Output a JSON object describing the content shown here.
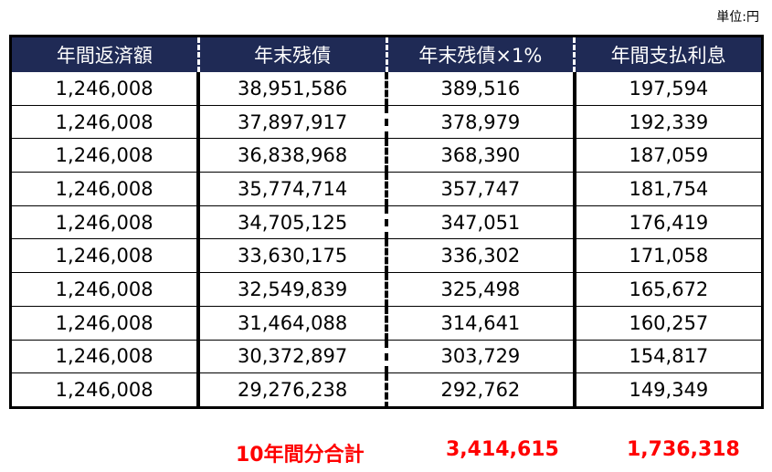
{
  "unit_label": "単位:円",
  "table": {
    "headers": [
      "年間返済額",
      "年末残債",
      "年末残債×1%",
      "年間支払利息"
    ],
    "rows": [
      [
        "1,246,008",
        "38,951,586",
        "389,516",
        "197,594"
      ],
      [
        "1,246,008",
        "37,897,917",
        "378,979",
        "192,339"
      ],
      [
        "1,246,008",
        "36,838,968",
        "368,390",
        "187,059"
      ],
      [
        "1,246,008",
        "35,774,714",
        "357,747",
        "181,754"
      ],
      [
        "1,246,008",
        "34,705,125",
        "347,051",
        "176,419"
      ],
      [
        "1,246,008",
        "33,630,175",
        "336,302",
        "171,058"
      ],
      [
        "1,246,008",
        "32,549,839",
        "325,498",
        "165,672"
      ],
      [
        "1,246,008",
        "31,464,088",
        "314,641",
        "160,257"
      ],
      [
        "1,246,008",
        "30,372,897",
        "303,729",
        "154,817"
      ],
      [
        "1,246,008",
        "29,276,238",
        "292,762",
        "149,349"
      ]
    ]
  },
  "totals": {
    "label": "10年間分合計",
    "deduction_total": "3,414,615",
    "interest_total": "1,736,318"
  },
  "colors": {
    "header_bg": "#1f2a55",
    "header_text": "#ffffff",
    "total_text": "#ff0000"
  }
}
